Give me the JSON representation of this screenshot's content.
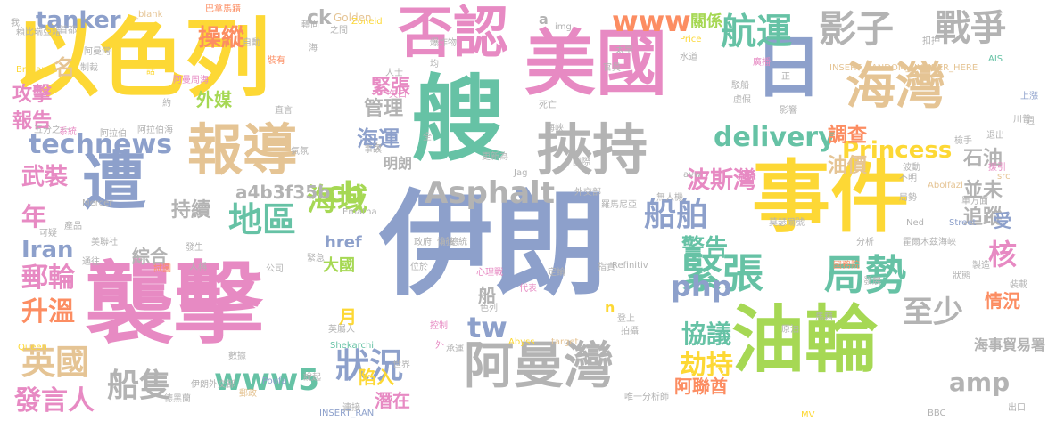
{
  "palette": {
    "yellow": "#fdd835",
    "pink": "#e78ac3",
    "green": "#66c2a5",
    "gray": "#b3b3b3",
    "blue": "#8da0cb",
    "orange": "#fc8d62",
    "lime": "#a6d854",
    "tan": "#e5c494"
  },
  "words": [
    {
      "text": "伊朗",
      "color": "#8da0cb"
    },
    {
      "text": "襲擊",
      "color": "#e78ac3"
    },
    {
      "text": "以色列",
      "color": "#fdd835"
    },
    {
      "text": "事件",
      "color": "#fdd835"
    },
    {
      "text": "艘",
      "color": "#66c2a5"
    },
    {
      "text": "美國",
      "color": "#e78ac3"
    },
    {
      "text": "否認",
      "color": "#e78ac3"
    },
    {
      "text": "油輪",
      "color": "#a6d854"
    },
    {
      "text": "挾持",
      "color": "#b3b3b3"
    },
    {
      "text": "報導",
      "color": "#e5c494"
    },
    {
      "text": "遭",
      "color": "#8da0cb"
    },
    {
      "text": "日",
      "color": "#8da0cb"
    },
    {
      "text": "阿曼灣",
      "color": "#b3b3b3"
    },
    {
      "text": "海灣",
      "color": "#e5c494"
    },
    {
      "text": "影子",
      "color": "#b3b3b3"
    },
    {
      "text": "戰爭",
      "color": "#b3b3b3"
    },
    {
      "text": "緊張",
      "color": "#66c2a5"
    },
    {
      "text": "局勢",
      "color": "#66c2a5"
    },
    {
      "text": "航運",
      "color": "#66c2a5"
    },
    {
      "text": "Asphalt",
      "color": "#b3b3b3"
    },
    {
      "text": "www5",
      "color": "#66c2a5"
    },
    {
      "text": "地區",
      "color": "#66c2a5"
    },
    {
      "text": "狀況",
      "color": "#8da0cb"
    },
    {
      "text": "technews",
      "color": "#8da0cb"
    },
    {
      "text": "delivery",
      "color": "#66c2a5"
    },
    {
      "text": "Princess",
      "color": "#fdd835"
    },
    {
      "text": "船舶",
      "color": "#8da0cb"
    },
    {
      "text": "php",
      "color": "#8da0cb"
    },
    {
      "text": "www",
      "color": "#fc8d62"
    },
    {
      "text": "至少",
      "color": "#b3b3b3"
    },
    {
      "text": "英國",
      "color": "#e5c494"
    },
    {
      "text": "劫持",
      "color": "#fdd835"
    },
    {
      "text": "amp",
      "color": "#b3b3b3"
    },
    {
      "text": "tanker",
      "color": "#8da0cb"
    },
    {
      "text": "cb",
      "color": "#a6d854"
    },
    {
      "text": "tw",
      "color": "#8da0cb"
    },
    {
      "text": "海域",
      "color": "#a6d854"
    },
    {
      "text": "船隻",
      "color": "#b3b3b3"
    },
    {
      "text": "發言人",
      "color": "#e78ac3"
    },
    {
      "text": "郵輪",
      "color": "#e78ac3"
    },
    {
      "text": "升溫",
      "color": "#fc8d62"
    },
    {
      "text": "協議",
      "color": "#66c2a5"
    },
    {
      "text": "警告",
      "color": "#66c2a5"
    },
    {
      "text": "核",
      "color": "#e78ac3"
    },
    {
      "text": "Iran",
      "color": "#8da0cb"
    },
    {
      "text": "年",
      "color": "#e78ac3"
    },
    {
      "text": "武裝",
      "color": "#e78ac3"
    },
    {
      "text": "海運",
      "color": "#8da0cb"
    },
    {
      "text": "管理",
      "color": "#b3b3b3"
    },
    {
      "text": "調查",
      "color": "#fc8d62"
    },
    {
      "text": "油價",
      "color": "#e5c494"
    },
    {
      "text": "石油",
      "color": "#b3b3b3"
    },
    {
      "text": "並未",
      "color": "#b3b3b3"
    },
    {
      "text": "追蹤",
      "color": "#b3b3b3"
    },
    {
      "text": "波斯灣",
      "color": "#e78ac3"
    },
    {
      "text": "a4b3f35b",
      "color": "#b3b3b3"
    },
    {
      "text": "持續",
      "color": "#b3b3b3"
    },
    {
      "text": "操縱",
      "color": "#fc8d62"
    },
    {
      "text": "攻擊",
      "color": "#e78ac3"
    },
    {
      "text": "報告",
      "color": "#e78ac3"
    },
    {
      "text": "名",
      "color": "#e5c494"
    },
    {
      "text": "外媒",
      "color": "#a6d854"
    },
    {
      "text": "緊張",
      "color": "#e78ac3"
    },
    {
      "text": "關係",
      "color": "#a6d854"
    },
    {
      "text": "ck",
      "color": "#b3b3b3"
    },
    {
      "text": "href",
      "color": "#8da0cb"
    },
    {
      "text": "大國",
      "color": "#a6d854"
    },
    {
      "text": "綜合",
      "color": "#b3b3b3"
    },
    {
      "text": "明朗",
      "color": "#b3b3b3"
    },
    {
      "text": "船",
      "color": "#b3b3b3"
    },
    {
      "text": "月",
      "color": "#fdd835"
    },
    {
      "text": "情況",
      "color": "#fc8d62"
    },
    {
      "text": "受",
      "color": "#8da0cb"
    },
    {
      "text": "阿聯酋",
      "color": "#fc8d62"
    },
    {
      "text": "海事貿易署",
      "color": "#b3b3b3"
    },
    {
      "text": "潛在",
      "color": "#e78ac3"
    },
    {
      "text": "陷入",
      "color": "#fdd835"
    },
    {
      "text": "a",
      "color": "#b3b3b3"
    },
    {
      "text": "n",
      "color": "#fdd835"
    },
    {
      "text": "src",
      "color": "#e5c494"
    },
    {
      "text": "_blank",
      "color": "#e5c494"
    },
    {
      "text": "Golden",
      "color": "#e5c494"
    },
    {
      "text": "Zoneid",
      "color": "#fdd835"
    },
    {
      "text": "img",
      "color": "#b3b3b3"
    },
    {
      "text": "Price",
      "color": "#fdd835"
    },
    {
      "text": "AIS",
      "color": "#66c2a5"
    },
    {
      "text": "Brilliant",
      "color": "#fdd835"
    },
    {
      "text": "INSERT_RANDOM_NUMBER_HERE",
      "color": "#e5c494"
    },
    {
      "text": "Mercer",
      "color": "#b3b3b3"
    },
    {
      "text": "Ematha",
      "color": "#b3b3b3"
    },
    {
      "text": "Abolfazl",
      "color": "#e5c494"
    },
    {
      "text": "avw",
      "color": "#b3b3b3"
    },
    {
      "text": "Ned",
      "color": "#b3b3b3"
    },
    {
      "text": "Street",
      "color": "#8da0cb"
    },
    {
      "text": "Poofa",
      "color": "#8da0cb"
    },
    {
      "text": "Refinitiv",
      "color": "#b3b3b3"
    },
    {
      "text": "Abyss",
      "color": "#fdd835"
    },
    {
      "text": "target",
      "color": "#e5c494"
    },
    {
      "text": "Shekarchi",
      "color": "#66c2a5"
    },
    {
      "text": "INSERT_RAN",
      "color": "#8da0cb"
    },
    {
      "text": "Queen",
      "color": "#fdd835"
    },
    {
      "text": "BBC",
      "color": "#b3b3b3"
    },
    {
      "text": "MV",
      "color": "#fdd835"
    },
    {
      "text": "Jag",
      "color": "#b3b3b3"
    },
    {
      "text": "賴比瑞亞籍",
      "color": "#b3b3b3"
    },
    {
      "text": "巴拿馬籍",
      "color": "#fc8d62"
    },
    {
      "text": "德黑蘭",
      "color": "#b3b3b3"
    },
    {
      "text": "首都",
      "color": "#b3b3b3"
    },
    {
      "text": "制裁",
      "color": "#b3b3b3"
    },
    {
      "text": "阿曼灣",
      "color": "#b3b3b3"
    },
    {
      "text": "阿曼周海",
      "color": "#e78ac3"
    },
    {
      "text": "五分之一",
      "color": "#b3b3b3"
    },
    {
      "text": "阿拉伯",
      "color": "#b3b3b3"
    },
    {
      "text": "阿拉伯海",
      "color": "#b3b3b3"
    },
    {
      "text": "試圖",
      "color": "#fc8d62"
    },
    {
      "text": "自動",
      "color": "#b3b3b3"
    },
    {
      "text": "裝有",
      "color": "#fc8d62"
    },
    {
      "text": "約",
      "color": "#b3b3b3"
    },
    {
      "text": "話",
      "color": "#fdd835"
    },
    {
      "text": "系統",
      "color": "#e78ac3"
    },
    {
      "text": "通往",
      "color": "#b3b3b3"
    },
    {
      "text": "產品",
      "color": "#b3b3b3"
    },
    {
      "text": "可疑",
      "color": "#b3b3b3"
    },
    {
      "text": "發生",
      "color": "#b3b3b3"
    },
    {
      "text": "美聯社",
      "color": "#b3b3b3"
    },
    {
      "text": "人稱",
      "color": "#b3b3b3"
    },
    {
      "text": "公司",
      "color": "#b3b3b3"
    },
    {
      "text": "緊急",
      "color": "#b3b3b3"
    },
    {
      "text": "數據",
      "color": "#b3b3b3"
    },
    {
      "text": "伊朗外交部",
      "color": "#b3b3b3"
    },
    {
      "text": "郵政",
      "color": "#e5c494"
    },
    {
      "text": "說起",
      "color": "#b3b3b3"
    },
    {
      "text": "英屬人",
      "color": "#b3b3b3"
    },
    {
      "text": "連接",
      "color": "#b3b3b3"
    },
    {
      "text": "控制",
      "color": "#e78ac3"
    },
    {
      "text": "色列",
      "color": "#b3b3b3"
    },
    {
      "text": "外",
      "color": "#e78ac3"
    },
    {
      "text": "承運",
      "color": "#b3b3b3"
    },
    {
      "text": "世界",
      "color": "#b3b3b3"
    },
    {
      "text": "位於",
      "color": "#b3b3b3"
    },
    {
      "text": "政府",
      "color": "#b3b3b3"
    },
    {
      "text": "恢復",
      "color": "#b3b3b3"
    },
    {
      "text": "前總統",
      "color": "#b3b3b3"
    },
    {
      "text": "心理戰",
      "color": "#e78ac3"
    },
    {
      "text": "代表",
      "color": "#e78ac3"
    },
    {
      "text": "定論",
      "color": "#b3b3b3"
    },
    {
      "text": "指責",
      "color": "#b3b3b3"
    },
    {
      "text": "無人機",
      "color": "#b3b3b3"
    },
    {
      "text": "唯一分析師",
      "color": "#b3b3b3"
    },
    {
      "text": "羅馬尼亞",
      "color": "#b3b3b3"
    },
    {
      "text": "外交部",
      "color": "#b3b3b3"
    },
    {
      "text": "國際",
      "color": "#b3b3b3"
    },
    {
      "text": "更新為",
      "color": "#b3b3b3"
    },
    {
      "text": "人士",
      "color": "#b3b3b3"
    },
    {
      "text": "矢口",
      "color": "#e78ac3"
    },
    {
      "text": "均",
      "color": "#b3b3b3"
    },
    {
      "text": "爆炸物",
      "color": "#b3b3b3"
    },
    {
      "text": "之間",
      "color": "#b3b3b3"
    },
    {
      "text": "轉向",
      "color": "#b3b3b3"
    },
    {
      "text": "太早",
      "color": "#b3b3b3"
    },
    {
      "text": "官員",
      "color": "#b3b3b3"
    },
    {
      "text": "水道",
      "color": "#b3b3b3"
    },
    {
      "text": "駁船",
      "color": "#b3b3b3"
    },
    {
      "text": "虛假",
      "color": "#b3b3b3"
    },
    {
      "text": "影響",
      "color": "#b3b3b3"
    },
    {
      "text": "正",
      "color": "#b3b3b3"
    },
    {
      "text": "廣播",
      "color": "#e78ac3"
    },
    {
      "text": "扣押",
      "color": "#b3b3b3"
    },
    {
      "text": "上漲",
      "color": "#8da0cb"
    },
    {
      "text": "川普",
      "color": "#b3b3b3"
    },
    {
      "text": "退出",
      "color": "#b3b3b3"
    },
    {
      "text": "檢手",
      "color": "#b3b3b3"
    },
    {
      "text": "援引",
      "color": "#e78ac3"
    },
    {
      "text": "單方面",
      "color": "#b3b3b3"
    },
    {
      "text": "局勢",
      "color": "#b3b3b3"
    },
    {
      "text": "莫瑟爾號",
      "color": "#b3b3b3"
    },
    {
      "text": "霍爾木茲海峽",
      "color": "#b3b3b3"
    },
    {
      "text": "國務院",
      "color": "#fc8d62"
    },
    {
      "text": "分析",
      "color": "#b3b3b3"
    },
    {
      "text": "製造",
      "color": "#b3b3b3"
    },
    {
      "text": "狀態",
      "color": "#b3b3b3"
    },
    {
      "text": "發展",
      "color": "#b3b3b3"
    },
    {
      "text": "裝載",
      "color": "#b3b3b3"
    },
    {
      "text": "馬籍",
      "color": "#b3b3b3"
    },
    {
      "text": "原油",
      "color": "#b3b3b3"
    },
    {
      "text": "出口",
      "color": "#b3b3b3"
    },
    {
      "text": "死亡",
      "color": "#b3b3b3"
    },
    {
      "text": "海峽",
      "color": "#b3b3b3"
    },
    {
      "text": "事故",
      "color": "#b3b3b3"
    },
    {
      "text": "次",
      "color": "#b3b3b3"
    },
    {
      "text": "全",
      "color": "#b3b3b3"
    },
    {
      "text": "直言",
      "color": "#b3b3b3"
    },
    {
      "text": "氣氛",
      "color": "#b3b3b3"
    },
    {
      "text": "不明",
      "color": "#b3b3b3"
    },
    {
      "text": "波動",
      "color": "#b3b3b3"
    },
    {
      "text": "週",
      "color": "#b3b3b3"
    },
    {
      "text": "我",
      "color": "#b3b3b3"
    },
    {
      "text": "登上",
      "color": "#b3b3b3"
    },
    {
      "text": "拍攝",
      "color": "#b3b3b3"
    },
    {
      "text": "海",
      "color": "#b3b3b3"
    }
  ]
}
